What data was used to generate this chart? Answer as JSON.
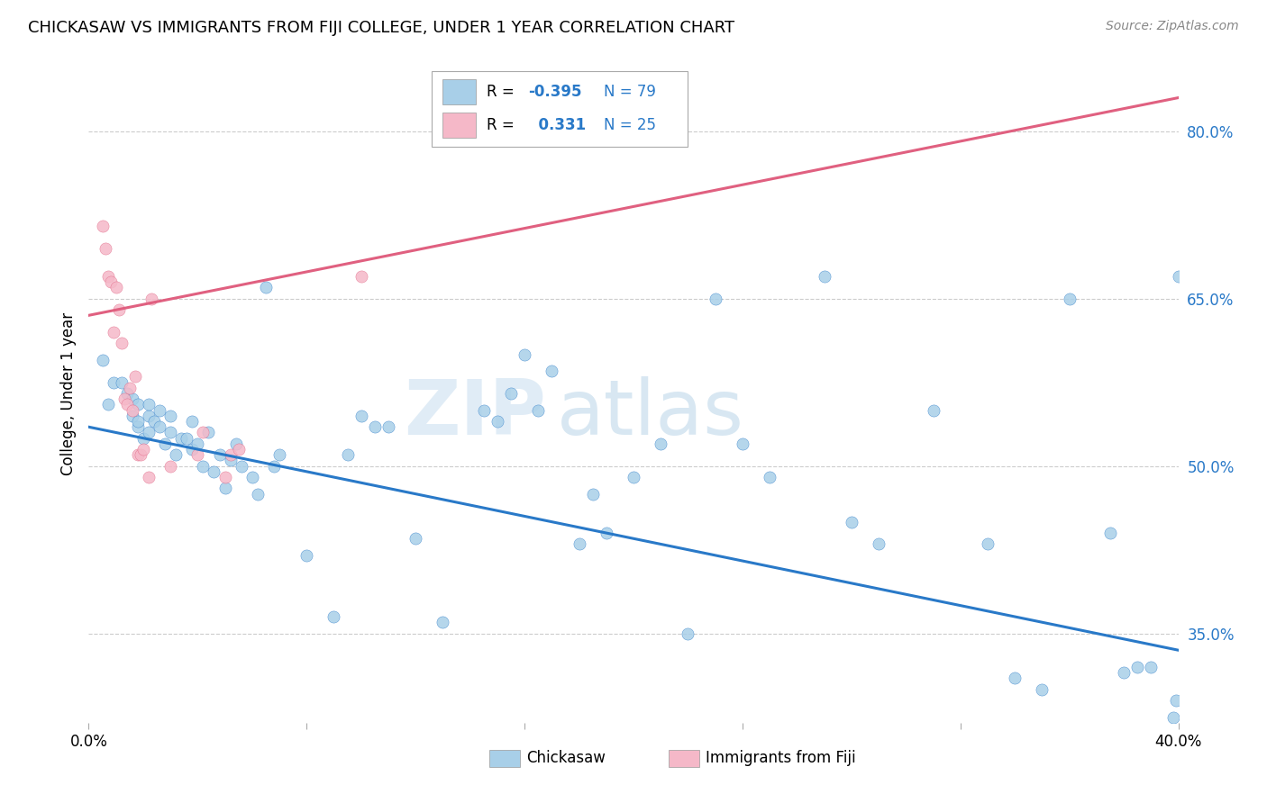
{
  "title": "CHICKASAW VS IMMIGRANTS FROM FIJI COLLEGE, UNDER 1 YEAR CORRELATION CHART",
  "source": "Source: ZipAtlas.com",
  "ylabel": "College, Under 1 year",
  "x_min": 0.0,
  "x_max": 0.4,
  "y_min": 0.27,
  "y_max": 0.86,
  "x_ticks": [
    0.0,
    0.08,
    0.16,
    0.24,
    0.32,
    0.4
  ],
  "x_tick_labels": [
    "0.0%",
    "",
    "",
    "",
    "",
    "40.0%"
  ],
  "y_tick_labels_right": [
    "80.0%",
    "65.0%",
    "50.0%",
    "35.0%"
  ],
  "y_tick_values_right": [
    0.8,
    0.65,
    0.5,
    0.35
  ],
  "blue_color": "#a8cfe8",
  "blue_line_color": "#2979c8",
  "pink_color": "#f5b8c8",
  "pink_line_color": "#e06080",
  "watermark_zip": "ZIP",
  "watermark_atlas": "atlas",
  "blue_line_x0": 0.0,
  "blue_line_y0": 0.535,
  "blue_line_x1": 0.4,
  "blue_line_y1": 0.335,
  "pink_line_x0": 0.0,
  "pink_line_y0": 0.635,
  "pink_line_x1": 0.4,
  "pink_line_y1": 0.83,
  "chickasaw_points": [
    [
      0.005,
      0.595
    ],
    [
      0.007,
      0.555
    ],
    [
      0.009,
      0.575
    ],
    [
      0.012,
      0.575
    ],
    [
      0.014,
      0.565
    ],
    [
      0.016,
      0.545
    ],
    [
      0.016,
      0.56
    ],
    [
      0.018,
      0.535
    ],
    [
      0.018,
      0.555
    ],
    [
      0.018,
      0.54
    ],
    [
      0.02,
      0.525
    ],
    [
      0.022,
      0.545
    ],
    [
      0.022,
      0.53
    ],
    [
      0.022,
      0.555
    ],
    [
      0.024,
      0.54
    ],
    [
      0.026,
      0.535
    ],
    [
      0.026,
      0.55
    ],
    [
      0.028,
      0.52
    ],
    [
      0.03,
      0.53
    ],
    [
      0.03,
      0.545
    ],
    [
      0.032,
      0.51
    ],
    [
      0.034,
      0.525
    ],
    [
      0.036,
      0.525
    ],
    [
      0.038,
      0.54
    ],
    [
      0.038,
      0.515
    ],
    [
      0.04,
      0.52
    ],
    [
      0.042,
      0.5
    ],
    [
      0.044,
      0.53
    ],
    [
      0.046,
      0.495
    ],
    [
      0.048,
      0.51
    ],
    [
      0.05,
      0.48
    ],
    [
      0.052,
      0.505
    ],
    [
      0.054,
      0.52
    ],
    [
      0.056,
      0.5
    ],
    [
      0.06,
      0.49
    ],
    [
      0.062,
      0.475
    ],
    [
      0.065,
      0.66
    ],
    [
      0.068,
      0.5
    ],
    [
      0.07,
      0.51
    ],
    [
      0.08,
      0.42
    ],
    [
      0.09,
      0.365
    ],
    [
      0.095,
      0.51
    ],
    [
      0.1,
      0.545
    ],
    [
      0.105,
      0.535
    ],
    [
      0.11,
      0.535
    ],
    [
      0.12,
      0.435
    ],
    [
      0.13,
      0.36
    ],
    [
      0.145,
      0.55
    ],
    [
      0.15,
      0.54
    ],
    [
      0.155,
      0.565
    ],
    [
      0.16,
      0.6
    ],
    [
      0.165,
      0.55
    ],
    [
      0.17,
      0.585
    ],
    [
      0.18,
      0.43
    ],
    [
      0.185,
      0.475
    ],
    [
      0.19,
      0.44
    ],
    [
      0.2,
      0.49
    ],
    [
      0.21,
      0.52
    ],
    [
      0.22,
      0.35
    ],
    [
      0.23,
      0.65
    ],
    [
      0.24,
      0.52
    ],
    [
      0.25,
      0.49
    ],
    [
      0.27,
      0.67
    ],
    [
      0.28,
      0.45
    ],
    [
      0.29,
      0.43
    ],
    [
      0.31,
      0.55
    ],
    [
      0.33,
      0.43
    ],
    [
      0.34,
      0.31
    ],
    [
      0.35,
      0.3
    ],
    [
      0.36,
      0.65
    ],
    [
      0.375,
      0.44
    ],
    [
      0.38,
      0.315
    ],
    [
      0.385,
      0.32
    ],
    [
      0.39,
      0.32
    ],
    [
      0.398,
      0.275
    ],
    [
      0.399,
      0.29
    ],
    [
      0.4,
      0.67
    ]
  ],
  "fiji_points": [
    [
      0.005,
      0.715
    ],
    [
      0.006,
      0.695
    ],
    [
      0.007,
      0.67
    ],
    [
      0.008,
      0.665
    ],
    [
      0.009,
      0.62
    ],
    [
      0.01,
      0.66
    ],
    [
      0.011,
      0.64
    ],
    [
      0.012,
      0.61
    ],
    [
      0.013,
      0.56
    ],
    [
      0.014,
      0.555
    ],
    [
      0.015,
      0.57
    ],
    [
      0.016,
      0.55
    ],
    [
      0.017,
      0.58
    ],
    [
      0.018,
      0.51
    ],
    [
      0.019,
      0.51
    ],
    [
      0.02,
      0.515
    ],
    [
      0.022,
      0.49
    ],
    [
      0.023,
      0.65
    ],
    [
      0.03,
      0.5
    ],
    [
      0.04,
      0.51
    ],
    [
      0.042,
      0.53
    ],
    [
      0.05,
      0.49
    ],
    [
      0.052,
      0.51
    ],
    [
      0.055,
      0.515
    ],
    [
      0.1,
      0.67
    ]
  ]
}
